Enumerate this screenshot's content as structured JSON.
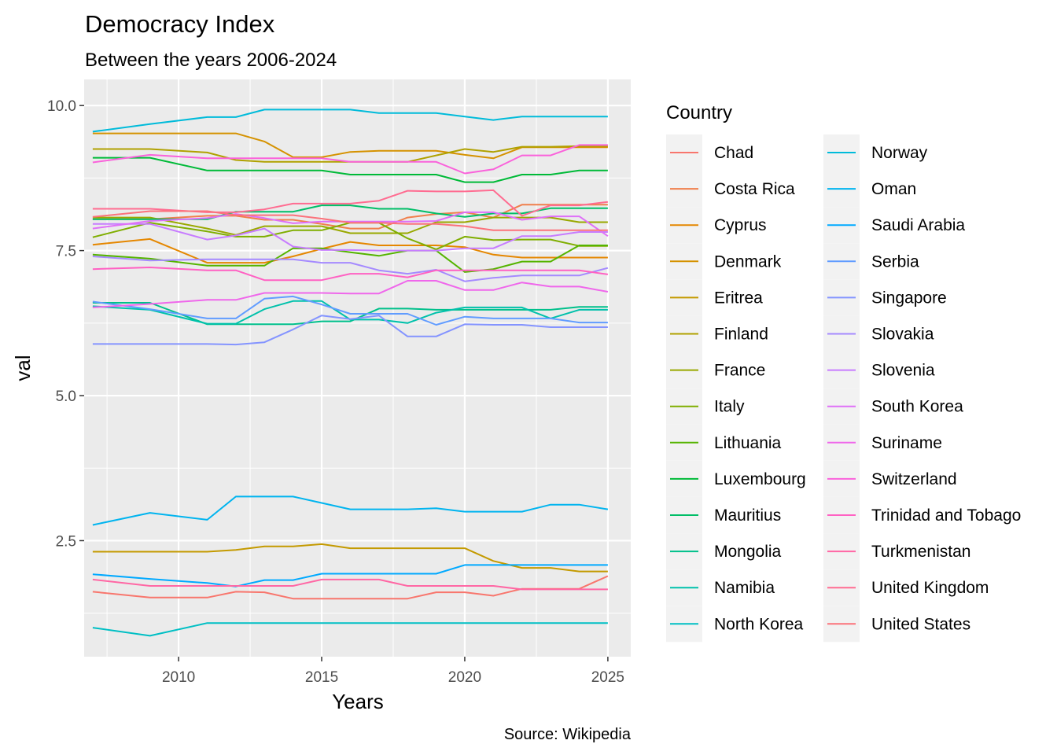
{
  "chart_data": {
    "type": "line",
    "title": "Democracy Index",
    "subtitle": "Between the years 2006-2024",
    "xlabel": "Years",
    "ylabel": "val",
    "caption": "Source: Wikipedia",
    "legend_title": "Country",
    "legend_position": "right",
    "grid": true,
    "xlim": [
      2006.7,
      2025.8
    ],
    "ylim": [
      0.5,
      10.45
    ],
    "x_ticks": [
      2010,
      2015,
      2020,
      2025
    ],
    "y_ticks": [
      2.5,
      5.0,
      7.5,
      10.0
    ],
    "y_tick_labels": [
      "2.5",
      "5.0",
      "7.5",
      "10.0"
    ],
    "series": [
      {
        "name": "Chad",
        "color": "#F8766D",
        "x": [
          2007,
          2009,
          2011,
          2012,
          2013,
          2014,
          2015,
          2016,
          2017,
          2018,
          2019,
          2020,
          2021,
          2022,
          2023,
          2024,
          2025
        ],
        "values": [
          1.62,
          1.52,
          1.52,
          1.62,
          1.61,
          1.5,
          1.5,
          1.5,
          1.5,
          1.5,
          1.61,
          1.61,
          1.55,
          1.67,
          1.67,
          1.67,
          1.89
        ]
      },
      {
        "name": "Costa Rica",
        "color": "#F07F4C",
        "x": [
          2007,
          2009,
          2011,
          2012,
          2013,
          2014,
          2015,
          2016,
          2017,
          2018,
          2019,
          2020,
          2021,
          2022,
          2023,
          2024,
          2025
        ],
        "values": [
          8.04,
          8.04,
          8.1,
          8.1,
          8.03,
          8.03,
          7.96,
          7.88,
          7.88,
          8.07,
          8.13,
          8.16,
          8.07,
          8.29,
          8.29,
          8.29,
          8.29
        ]
      },
      {
        "name": "Cyprus",
        "color": "#E58700",
        "x": [
          2007,
          2009,
          2011,
          2012,
          2013,
          2014,
          2015,
          2016,
          2017,
          2018,
          2019,
          2020,
          2021,
          2022,
          2023,
          2024,
          2025
        ],
        "values": [
          7.6,
          7.7,
          7.29,
          7.29,
          7.29,
          7.4,
          7.53,
          7.65,
          7.59,
          7.59,
          7.59,
          7.56,
          7.43,
          7.38,
          7.38,
          7.38,
          7.38
        ]
      },
      {
        "name": "Denmark",
        "color": "#D59200",
        "x": [
          2007,
          2009,
          2011,
          2012,
          2013,
          2014,
          2015,
          2016,
          2017,
          2018,
          2019,
          2020,
          2021,
          2022,
          2023,
          2024,
          2025
        ],
        "values": [
          9.52,
          9.52,
          9.52,
          9.52,
          9.38,
          9.11,
          9.11,
          9.2,
          9.22,
          9.22,
          9.22,
          9.15,
          9.09,
          9.28,
          9.28,
          9.28,
          9.28
        ]
      },
      {
        "name": "Eritrea",
        "color": "#C49A00",
        "x": [
          2007,
          2009,
          2011,
          2012,
          2013,
          2014,
          2015,
          2016,
          2017,
          2018,
          2019,
          2020,
          2021,
          2022,
          2023,
          2024,
          2025
        ],
        "values": [
          2.31,
          2.31,
          2.31,
          2.34,
          2.4,
          2.4,
          2.44,
          2.37,
          2.37,
          2.37,
          2.37,
          2.37,
          2.15,
          2.03,
          2.03,
          1.97,
          1.97
        ]
      },
      {
        "name": "Finland",
        "color": "#B0A100",
        "x": [
          2007,
          2009,
          2011,
          2012,
          2013,
          2014,
          2015,
          2016,
          2017,
          2018,
          2019,
          2020,
          2021,
          2022,
          2023,
          2024,
          2025
        ],
        "values": [
          9.25,
          9.25,
          9.19,
          9.06,
          9.03,
          9.03,
          9.03,
          9.03,
          9.03,
          9.03,
          9.14,
          9.25,
          9.2,
          9.29,
          9.29,
          9.3,
          9.3
        ]
      },
      {
        "name": "France",
        "color": "#99A800",
        "x": [
          2007,
          2009,
          2011,
          2012,
          2013,
          2014,
          2015,
          2016,
          2017,
          2018,
          2019,
          2020,
          2021,
          2022,
          2023,
          2024,
          2025
        ],
        "values": [
          8.07,
          8.07,
          7.88,
          7.77,
          7.92,
          7.92,
          7.92,
          7.8,
          7.8,
          7.8,
          7.99,
          7.99,
          8.07,
          8.07,
          8.07,
          7.99,
          7.99
        ]
      },
      {
        "name": "Italy",
        "color": "#7FAE00",
        "x": [
          2007,
          2009,
          2011,
          2012,
          2013,
          2014,
          2015,
          2016,
          2017,
          2018,
          2019,
          2020,
          2021,
          2022,
          2023,
          2024,
          2025
        ],
        "values": [
          7.73,
          7.98,
          7.83,
          7.74,
          7.74,
          7.85,
          7.85,
          7.98,
          7.98,
          7.71,
          7.52,
          7.74,
          7.68,
          7.69,
          7.69,
          7.58,
          7.58
        ]
      },
      {
        "name": "Lithuania",
        "color": "#55B400",
        "x": [
          2007,
          2009,
          2011,
          2012,
          2013,
          2014,
          2015,
          2016,
          2017,
          2018,
          2019,
          2020,
          2021,
          2022,
          2023,
          2024,
          2025
        ],
        "values": [
          7.43,
          7.36,
          7.24,
          7.24,
          7.24,
          7.54,
          7.54,
          7.47,
          7.41,
          7.5,
          7.5,
          7.13,
          7.18,
          7.31,
          7.31,
          7.59,
          7.59
        ]
      },
      {
        "name": "Luxembourg",
        "color": "#00BA38",
        "x": [
          2007,
          2009,
          2011,
          2012,
          2013,
          2014,
          2015,
          2016,
          2017,
          2018,
          2019,
          2020,
          2021,
          2022,
          2023,
          2024,
          2025
        ],
        "values": [
          9.1,
          9.1,
          8.88,
          8.88,
          8.88,
          8.88,
          8.88,
          8.81,
          8.81,
          8.81,
          8.81,
          8.68,
          8.68,
          8.81,
          8.81,
          8.88,
          8.88
        ]
      },
      {
        "name": "Mauritius",
        "color": "#00BE67",
        "x": [
          2007,
          2009,
          2011,
          2012,
          2013,
          2014,
          2015,
          2016,
          2017,
          2018,
          2019,
          2020,
          2021,
          2022,
          2023,
          2024,
          2025
        ],
        "values": [
          8.04,
          8.04,
          8.04,
          8.17,
          8.17,
          8.17,
          8.28,
          8.28,
          8.22,
          8.22,
          8.14,
          8.08,
          8.14,
          8.14,
          8.23,
          8.23,
          8.23
        ]
      },
      {
        "name": "Mongolia",
        "color": "#00C08B",
        "x": [
          2007,
          2009,
          2011,
          2012,
          2013,
          2014,
          2015,
          2016,
          2017,
          2018,
          2019,
          2020,
          2021,
          2022,
          2023,
          2024,
          2025
        ],
        "values": [
          6.6,
          6.6,
          6.23,
          6.23,
          6.23,
          6.23,
          6.28,
          6.28,
          6.5,
          6.5,
          6.48,
          6.48,
          6.48,
          6.48,
          6.48,
          6.53,
          6.53
        ]
      },
      {
        "name": "Namibia",
        "color": "#00C1AB",
        "x": [
          2007,
          2009,
          2011,
          2012,
          2013,
          2014,
          2015,
          2016,
          2017,
          2018,
          2019,
          2020,
          2021,
          2022,
          2023,
          2024,
          2025
        ],
        "values": [
          6.54,
          6.48,
          6.24,
          6.24,
          6.49,
          6.63,
          6.63,
          6.31,
          6.31,
          6.25,
          6.43,
          6.52,
          6.52,
          6.52,
          6.33,
          6.48,
          6.48
        ]
      },
      {
        "name": "North Korea",
        "color": "#00BFC4",
        "x": [
          2007,
          2009,
          2011,
          2012,
          2013,
          2014,
          2015,
          2016,
          2017,
          2018,
          2019,
          2020,
          2021,
          2022,
          2023,
          2024,
          2025
        ],
        "values": [
          1.0,
          0.86,
          1.08,
          1.08,
          1.08,
          1.08,
          1.08,
          1.08,
          1.08,
          1.08,
          1.08,
          1.08,
          1.08,
          1.08,
          1.08,
          1.08,
          1.08
        ]
      },
      {
        "name": "Norway",
        "color": "#00BBDA",
        "x": [
          2007,
          2009,
          2011,
          2012,
          2013,
          2014,
          2015,
          2016,
          2017,
          2018,
          2019,
          2020,
          2021,
          2022,
          2023,
          2024,
          2025
        ],
        "values": [
          9.55,
          9.68,
          9.8,
          9.8,
          9.93,
          9.93,
          9.93,
          9.93,
          9.87,
          9.87,
          9.87,
          9.81,
          9.75,
          9.81,
          9.81,
          9.81,
          9.81
        ]
      },
      {
        "name": "Oman",
        "color": "#00B4EF",
        "x": [
          2007,
          2009,
          2011,
          2012,
          2013,
          2014,
          2015,
          2016,
          2017,
          2018,
          2019,
          2020,
          2021,
          2022,
          2023,
          2024,
          2025
        ],
        "values": [
          2.77,
          2.98,
          2.86,
          3.26,
          3.26,
          3.26,
          3.15,
          3.04,
          3.04,
          3.04,
          3.06,
          3.0,
          3.0,
          3.0,
          3.12,
          3.12,
          3.04
        ]
      },
      {
        "name": "Saudi Arabia",
        "color": "#00A9FF",
        "x": [
          2007,
          2009,
          2011,
          2012,
          2013,
          2014,
          2015,
          2016,
          2017,
          2018,
          2019,
          2020,
          2021,
          2022,
          2023,
          2024,
          2025
        ],
        "values": [
          1.92,
          1.84,
          1.77,
          1.71,
          1.82,
          1.82,
          1.93,
          1.93,
          1.93,
          1.93,
          1.93,
          2.08,
          2.08,
          2.08,
          2.08,
          2.08,
          2.08
        ]
      },
      {
        "name": "Serbia",
        "color": "#619CFF",
        "x": [
          2007,
          2009,
          2011,
          2012,
          2013,
          2014,
          2015,
          2016,
          2017,
          2018,
          2019,
          2020,
          2021,
          2022,
          2023,
          2024,
          2025
        ],
        "values": [
          6.62,
          6.49,
          6.33,
          6.33,
          6.67,
          6.71,
          6.57,
          6.41,
          6.41,
          6.41,
          6.22,
          6.36,
          6.33,
          6.33,
          6.33,
          6.26,
          6.26
        ]
      },
      {
        "name": "Singapore",
        "color": "#8494FF",
        "x": [
          2007,
          2009,
          2011,
          2012,
          2013,
          2014,
          2015,
          2016,
          2017,
          2018,
          2019,
          2020,
          2021,
          2022,
          2023,
          2024,
          2025
        ],
        "values": [
          5.89,
          5.89,
          5.89,
          5.88,
          5.92,
          6.14,
          6.38,
          6.32,
          6.38,
          6.02,
          6.02,
          6.23,
          6.22,
          6.22,
          6.18,
          6.18,
          6.18
        ]
      },
      {
        "name": "Slovakia",
        "color": "#A58AFF",
        "x": [
          2007,
          2009,
          2011,
          2012,
          2013,
          2014,
          2015,
          2016,
          2017,
          2018,
          2019,
          2020,
          2021,
          2022,
          2023,
          2024,
          2025
        ],
        "values": [
          7.4,
          7.33,
          7.35,
          7.35,
          7.35,
          7.35,
          7.29,
          7.29,
          7.16,
          7.1,
          7.17,
          6.97,
          7.03,
          7.07,
          7.07,
          7.07,
          7.2
        ]
      },
      {
        "name": "Slovenia",
        "color": "#C77CFF",
        "x": [
          2007,
          2009,
          2011,
          2012,
          2013,
          2014,
          2015,
          2016,
          2017,
          2018,
          2019,
          2020,
          2021,
          2022,
          2023,
          2024,
          2025
        ],
        "values": [
          7.96,
          7.96,
          7.69,
          7.76,
          7.88,
          7.57,
          7.51,
          7.51,
          7.5,
          7.5,
          7.5,
          7.54,
          7.54,
          7.75,
          7.75,
          7.82,
          7.82
        ]
      },
      {
        "name": "South Korea",
        "color": "#DF70F8",
        "x": [
          2007,
          2009,
          2011,
          2012,
          2013,
          2014,
          2015,
          2016,
          2017,
          2018,
          2019,
          2020,
          2021,
          2022,
          2023,
          2024,
          2025
        ],
        "values": [
          7.88,
          8.01,
          8.06,
          8.13,
          8.06,
          7.97,
          8.0,
          8.0,
          8.0,
          8.0,
          8.01,
          8.16,
          8.16,
          8.03,
          8.09,
          8.09,
          7.75
        ]
      },
      {
        "name": "Suriname",
        "color": "#EF67EB",
        "x": [
          2007,
          2009,
          2011,
          2012,
          2013,
          2014,
          2015,
          2016,
          2017,
          2018,
          2019,
          2020,
          2021,
          2022,
          2023,
          2024,
          2025
        ],
        "values": [
          6.52,
          6.58,
          6.65,
          6.65,
          6.77,
          6.77,
          6.77,
          6.76,
          6.76,
          6.98,
          6.98,
          6.82,
          6.82,
          6.95,
          6.88,
          6.88,
          6.79
        ]
      },
      {
        "name": "Switzerland",
        "color": "#FA62DB",
        "x": [
          2007,
          2009,
          2011,
          2012,
          2013,
          2014,
          2015,
          2016,
          2017,
          2018,
          2019,
          2020,
          2021,
          2022,
          2023,
          2024,
          2025
        ],
        "values": [
          9.02,
          9.15,
          9.09,
          9.09,
          9.09,
          9.09,
          9.09,
          9.03,
          9.03,
          9.03,
          9.03,
          8.83,
          8.9,
          9.14,
          9.14,
          9.32,
          9.32
        ]
      },
      {
        "name": "Trinidad and Tobago",
        "color": "#FF61C3",
        "x": [
          2007,
          2009,
          2011,
          2012,
          2013,
          2014,
          2015,
          2016,
          2017,
          2018,
          2019,
          2020,
          2021,
          2022,
          2023,
          2024,
          2025
        ],
        "values": [
          7.18,
          7.21,
          7.16,
          7.16,
          6.99,
          6.99,
          6.99,
          7.1,
          7.1,
          7.04,
          7.16,
          7.16,
          7.16,
          7.16,
          7.16,
          7.16,
          7.09
        ]
      },
      {
        "name": "Turkmenistan",
        "color": "#FF67A4",
        "x": [
          2007,
          2009,
          2011,
          2012,
          2013,
          2014,
          2015,
          2016,
          2017,
          2018,
          2019,
          2020,
          2021,
          2022,
          2023,
          2024,
          2025
        ],
        "values": [
          1.83,
          1.72,
          1.72,
          1.72,
          1.72,
          1.72,
          1.83,
          1.83,
          1.83,
          1.72,
          1.72,
          1.72,
          1.72,
          1.66,
          1.66,
          1.66,
          1.66
        ]
      },
      {
        "name": "United Kingdom",
        "color": "#FF6C91",
        "x": [
          2007,
          2009,
          2011,
          2012,
          2013,
          2014,
          2015,
          2016,
          2017,
          2018,
          2019,
          2020,
          2021,
          2022,
          2023,
          2024,
          2025
        ],
        "values": [
          8.22,
          8.22,
          8.16,
          8.16,
          8.21,
          8.31,
          8.31,
          8.31,
          8.36,
          8.53,
          8.52,
          8.52,
          8.54,
          8.1,
          8.28,
          8.28,
          8.34
        ]
      },
      {
        "name": "United States",
        "color": "#FB727B",
        "x": [
          2007,
          2009,
          2011,
          2012,
          2013,
          2014,
          2015,
          2016,
          2017,
          2018,
          2019,
          2020,
          2021,
          2022,
          2023,
          2024,
          2025
        ],
        "values": [
          8.08,
          8.18,
          8.18,
          8.11,
          8.11,
          8.11,
          8.05,
          7.98,
          7.98,
          7.96,
          7.96,
          7.92,
          7.85,
          7.85,
          7.85,
          7.85,
          7.85
        ]
      }
    ]
  }
}
